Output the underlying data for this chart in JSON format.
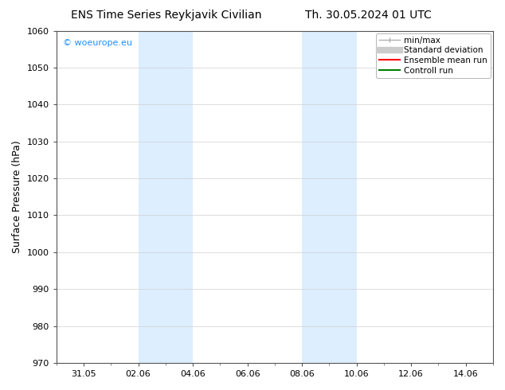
{
  "title_left": "ENS Time Series Reykjavik Civilian",
  "title_right": "Th. 30.05.2024 01 UTC",
  "ylabel": "Surface Pressure (hPa)",
  "ylim": [
    970,
    1060
  ],
  "yticks": [
    970,
    980,
    990,
    1000,
    1010,
    1020,
    1030,
    1040,
    1050,
    1060
  ],
  "xlim_days": [
    0,
    16
  ],
  "xtick_labels": [
    "31.05",
    "02.06",
    "04.06",
    "06.06",
    "08.06",
    "10.06",
    "12.06",
    "14.06"
  ],
  "xtick_positions_days": [
    1,
    3,
    5,
    7,
    9,
    11,
    13,
    15
  ],
  "shaded_bands": [
    {
      "x_start_day": 3,
      "x_end_day": 5
    },
    {
      "x_start_day": 9,
      "x_end_day": 11
    }
  ],
  "shade_color": "#dceeff",
  "background_color": "#ffffff",
  "plot_bg_color": "#ffffff",
  "watermark_text": "© woeurope.eu",
  "watermark_color": "#1e90ff",
  "legend_items": [
    {
      "label": "min/max",
      "color": "#b0b0b0",
      "lw": 1.0
    },
    {
      "label": "Standard deviation",
      "color": "#cccccc",
      "lw": 5
    },
    {
      "label": "Ensemble mean run",
      "color": "#ff0000",
      "lw": 1.5
    },
    {
      "label": "Controll run",
      "color": "#008000",
      "lw": 1.5
    }
  ],
  "title_fontsize": 10,
  "ylabel_fontsize": 9,
  "tick_fontsize": 8,
  "legend_fontsize": 7.5,
  "watermark_fontsize": 8
}
